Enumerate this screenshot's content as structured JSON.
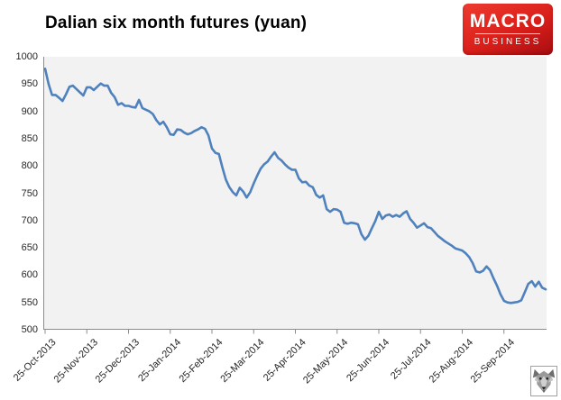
{
  "title": "Dalian six month futures (yuan)",
  "logo": {
    "line1": "MACRO",
    "line2": "BUSINESS",
    "bg_color_top": "#ee3b30",
    "bg_color_bottom": "#a80d11",
    "text_color": "#ffffff"
  },
  "corner_emblem": {
    "icon": "wolf-icon"
  },
  "chart_data": {
    "type": "line",
    "title": "Dalian six month futures (yuan)",
    "series_name": "Dalian six month futures",
    "unit": "yuan",
    "line_color": "#4F81BD",
    "plot_bg": "#F2F2F2",
    "axis_color": "#8c8c8c",
    "grid": false,
    "legend": "none",
    "ylim": [
      500,
      1000
    ],
    "y_ticks": [
      1000,
      950,
      900,
      850,
      800,
      750,
      700,
      650,
      600,
      550,
      500
    ],
    "x_tick_labels": [
      "25-Oct-2013",
      "25-Nov-2013",
      "25-Dec-2013",
      "25-Jan-2014",
      "25-Feb-2014",
      "25-Mar-2014",
      "25-Apr-2014",
      "25-May-2014",
      "25-Jun-2014",
      "25-Jul-2014",
      "25-Aug-2014",
      "25-Sep-2014"
    ],
    "points_per_month": 12,
    "values": [
      978,
      950,
      930,
      930,
      925,
      919,
      931,
      945,
      947,
      941,
      935,
      929,
      944,
      944,
      939,
      945,
      951,
      947,
      947,
      934,
      926,
      912,
      915,
      910,
      910,
      908,
      907,
      921,
      906,
      903,
      900,
      895,
      884,
      876,
      881,
      871,
      858,
      857,
      867,
      866,
      861,
      858,
      860,
      864,
      867,
      871,
      868,
      856,
      832,
      824,
      822,
      797,
      775,
      761,
      752,
      746,
      760,
      753,
      742,
      752,
      768,
      782,
      795,
      803,
      808,
      817,
      825,
      815,
      810,
      803,
      797,
      793,
      793,
      777,
      770,
      771,
      764,
      761,
      747,
      742,
      746,
      721,
      716,
      721,
      720,
      716,
      696,
      694,
      696,
      695,
      693,
      675,
      665,
      672,
      686,
      699,
      716,
      703,
      709,
      711,
      707,
      710,
      707,
      713,
      717,
      703,
      696,
      687,
      691,
      695,
      688,
      686,
      679,
      672,
      667,
      662,
      658,
      654,
      649,
      647,
      645,
      640,
      633,
      622,
      607,
      605,
      608,
      616,
      609,
      594,
      581,
      565,
      553,
      550,
      549,
      550,
      551,
      554,
      569,
      584,
      589,
      579,
      588,
      577,
      574
    ]
  }
}
